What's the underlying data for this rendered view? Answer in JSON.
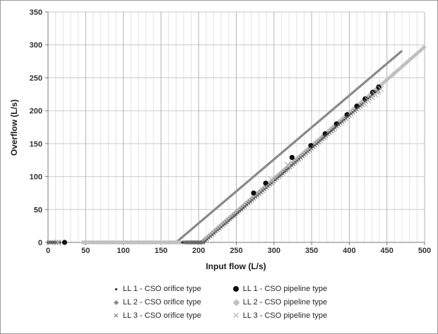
{
  "frame": {
    "background": "#ffffff",
    "border_color": "#9a9a9a"
  },
  "chart_data": {
    "type": "scatter",
    "title": "",
    "xlabel": "Input flow (L/s)",
    "ylabel": "Overflow (L/s)",
    "xlim": [
      0,
      500
    ],
    "ylim": [
      0,
      350
    ],
    "x_ticks": [
      0,
      50,
      100,
      150,
      200,
      250,
      300,
      350,
      400,
      450,
      500
    ],
    "y_ticks": [
      0,
      50,
      100,
      150,
      200,
      250,
      300,
      350
    ],
    "x_tick_step": 50,
    "x_minor_step": 10,
    "y_tick_step": 50,
    "grid": {
      "vertical_minor": true,
      "vertical_major": true,
      "horizontal_major": true
    },
    "colors": {
      "grid_minor": "#e2e2e2",
      "grid_major_v": "#b3b3b3",
      "grid_major_h": "#c9c9c9",
      "axis_line": "#7a7a7a",
      "tick_label": "#303030"
    },
    "legend_position": "bottom",
    "draw_order": [
      2,
      3,
      0,
      1,
      4,
      5
    ],
    "series": [
      {
        "name": "LL 1 - CSO orifice type",
        "marker": "dot",
        "color": "#1c1c1c",
        "description": "zero overflow up to ~207 L/s input, then linear 1:1 rise to (443, 236)",
        "segments": [
          {
            "from": 0,
            "to": 16,
            "step": 2,
            "slope": 0,
            "threshold": 0
          },
          {
            "from": 178,
            "to": 206,
            "step": 2.2,
            "slope": 0,
            "threshold": 0
          },
          {
            "from": 207,
            "to": 443,
            "step": 2.3,
            "slope": 1.0,
            "threshold": 207
          }
        ]
      },
      {
        "name": "LL 1 - CSO pipeline type",
        "marker": "circle",
        "color": "#0d0d0d",
        "points": [
          [
            22,
            0
          ],
          [
            273,
            75
          ],
          [
            289,
            90
          ],
          [
            324,
            129
          ],
          [
            349,
            147
          ],
          [
            368,
            165
          ],
          [
            383,
            180
          ],
          [
            397,
            194
          ],
          [
            410,
            207
          ],
          [
            421,
            218
          ],
          [
            431,
            228
          ],
          [
            439,
            236
          ]
        ]
      },
      {
        "name": "LL 2 - CSO orifice type",
        "marker": "diamond",
        "color": "#8a8a8a",
        "description": "zero overflow from 45 to ~170 L/s input, then rises at slope 0.97 to (470, 291)",
        "segments": [
          {
            "from": 0,
            "to": 14,
            "step": 2.5,
            "slope": 0,
            "threshold": 0
          },
          {
            "from": 45,
            "to": 170,
            "step": 1.3,
            "slope": 0,
            "threshold": 0
          },
          {
            "from": 170,
            "to": 470,
            "step": 1.3,
            "slope": 0.97,
            "threshold": 170
          }
        ]
      },
      {
        "name": "LL 2 - CSO pipeline type",
        "marker": "diamond-large",
        "color": "#c0c0c0",
        "description": "zero overflow from 46 to ~203 L/s input, then linear 1:1 rise to (500, 297)",
        "segments": [
          {
            "from": 46,
            "to": 203,
            "step": 2.6,
            "slope": 0,
            "threshold": 0
          },
          {
            "from": 203,
            "to": 500,
            "step": 2.6,
            "slope": 1.0,
            "threshold": 203
          }
        ]
      },
      {
        "name": "LL 3 - CSO orifice type",
        "marker": "x",
        "color": "#6e6e6e",
        "description": "zero overflow up to ~206 L/s input, then near 1:1 rise to (440, 232)",
        "segments": [
          {
            "from": 1,
            "to": 15,
            "step": 2.3,
            "slope": 0,
            "threshold": 0
          },
          {
            "from": 181,
            "to": 205,
            "step": 2.4,
            "slope": 0,
            "threshold": 0
          },
          {
            "from": 206,
            "to": 440,
            "step": 2.4,
            "slope": 0.99,
            "threshold": 206
          }
        ]
      },
      {
        "name": "LL 3 - CSO pipeline type",
        "marker": "x-large",
        "color": "#b5b5b5",
        "points": [
          [
            13,
            0
          ],
          [
            297,
            95
          ],
          [
            318,
            118
          ],
          [
            420,
            211
          ],
          [
            425,
            216
          ],
          [
            430,
            221
          ],
          [
            434,
            225
          ],
          [
            438,
            229
          ],
          [
            442,
            233
          ]
        ]
      }
    ]
  }
}
